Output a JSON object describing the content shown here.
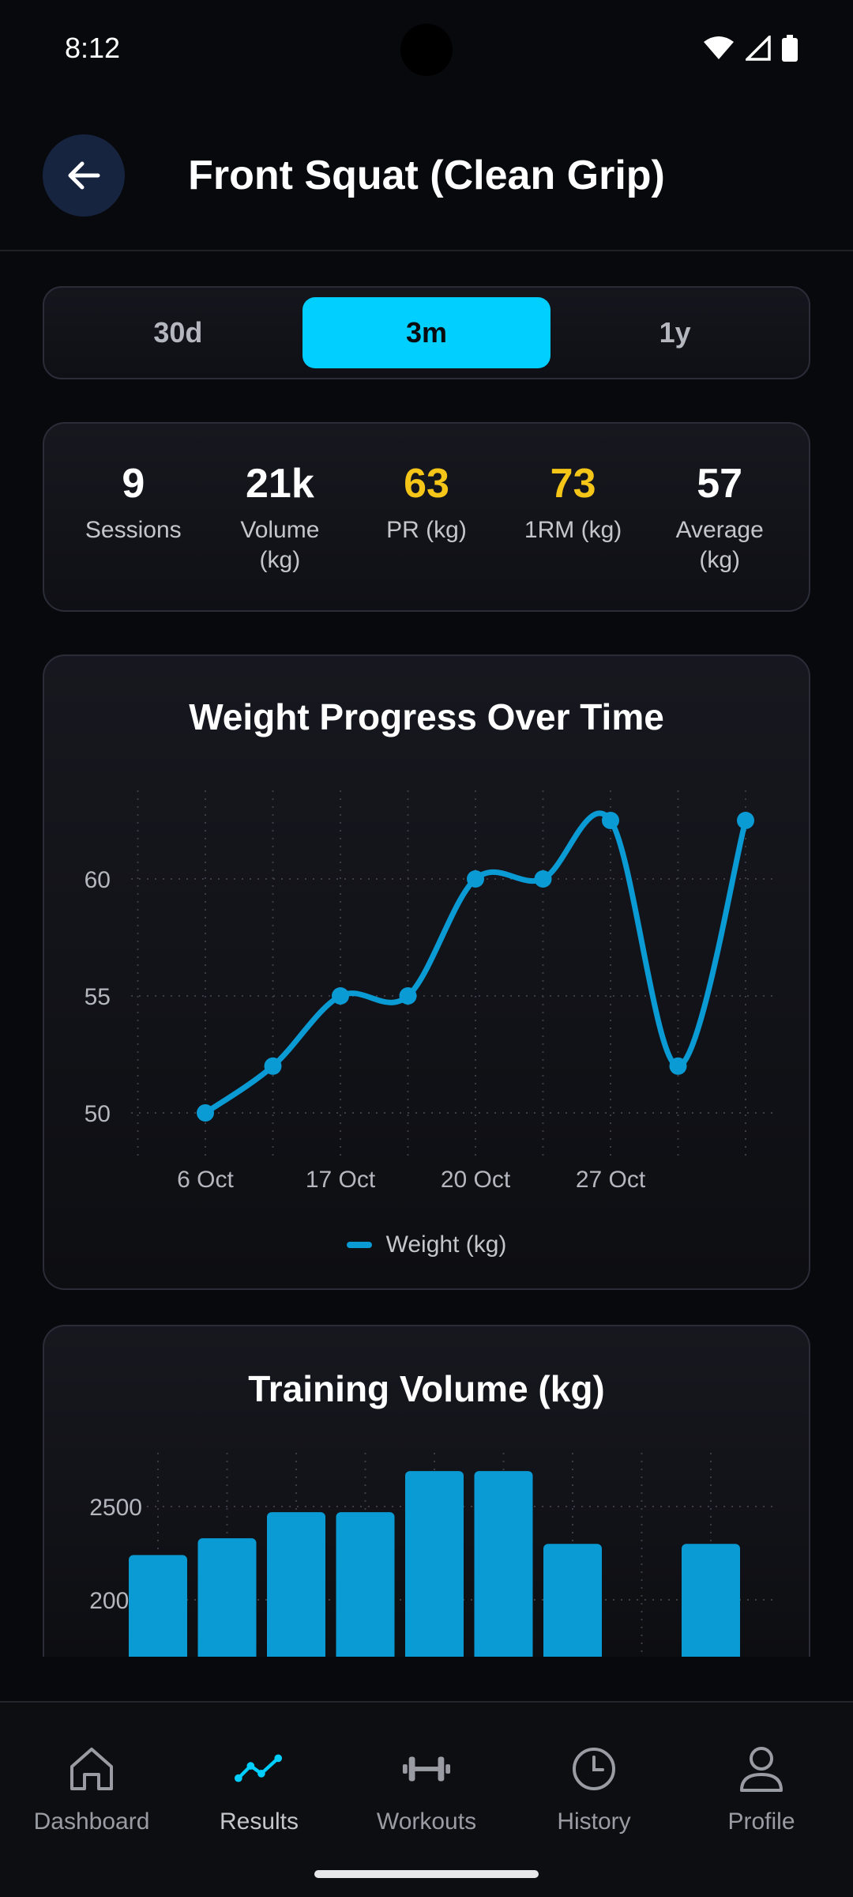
{
  "status_bar": {
    "time": "8:12"
  },
  "header": {
    "title": "Front Squat (Clean Grip)"
  },
  "range_tabs": [
    {
      "label": "30d",
      "active": false
    },
    {
      "label": "3m",
      "active": true
    },
    {
      "label": "1y",
      "active": false
    }
  ],
  "stats": [
    {
      "value": "9",
      "label": "Sessions",
      "highlight": false
    },
    {
      "value": "21k",
      "label": "Volume (kg)",
      "highlight": false
    },
    {
      "value": "63",
      "label": "PR (kg)",
      "highlight": true
    },
    {
      "value": "73",
      "label": "1RM (kg)",
      "highlight": true
    },
    {
      "value": "57",
      "label": "Average (kg)",
      "highlight": false
    }
  ],
  "chart_data": [
    {
      "type": "line",
      "title": "Weight Progress Over Time",
      "x_tick_labels": [
        "6 Oct",
        "17 Oct",
        "20 Oct",
        "27 Oct"
      ],
      "y_tick_labels": [
        "50",
        "55",
        "60"
      ],
      "ylim": [
        48,
        64
      ],
      "grid": true,
      "legend_position": "bottom",
      "series": [
        {
          "name": "Weight (kg)",
          "color": "#0a9bd4",
          "values": [
            50,
            52,
            55,
            55,
            60,
            60,
            62.5,
            52,
            62.5
          ]
        }
      ]
    },
    {
      "type": "bar",
      "title": "Training Volume (kg)",
      "y_tick_labels": [
        "2000",
        "2500"
      ],
      "grid": true,
      "series": [
        {
          "color": "#0a9bd4",
          "values": [
            2240,
            2330,
            2470,
            2470,
            2690,
            2690,
            2300,
            null,
            2300
          ]
        }
      ]
    }
  ],
  "nav": [
    {
      "label": "Dashboard",
      "icon": "home-icon",
      "active": false
    },
    {
      "label": "Results",
      "icon": "trend-icon",
      "active": true
    },
    {
      "label": "Workouts",
      "icon": "dumbbell-icon",
      "active": false
    },
    {
      "label": "History",
      "icon": "clock-icon",
      "active": false
    },
    {
      "label": "Profile",
      "icon": "person-icon",
      "active": false
    }
  ],
  "colors": {
    "accent": "#00cfff",
    "series": "#0a9bd4",
    "highlight": "#f5c518",
    "background": "#08090c"
  }
}
